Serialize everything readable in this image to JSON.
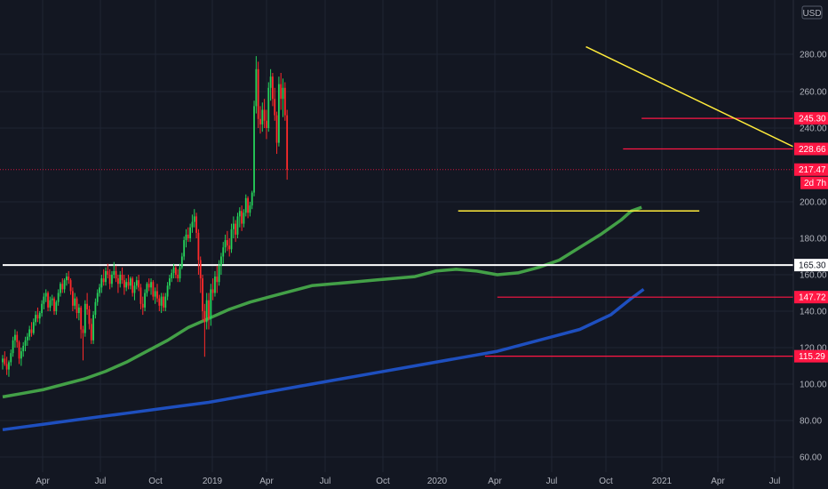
{
  "chart_data": {
    "type": "candlestick",
    "currency": "USD",
    "countdown": "2d 7h",
    "y_axis": {
      "ylim": [
        55,
        300
      ],
      "ticks": [
        60,
        80,
        100,
        120,
        140,
        160,
        180,
        200,
        240,
        260,
        280
      ]
    },
    "x_axis": {
      "ticks": [
        "Apr",
        "Jul",
        "Oct",
        "2019",
        "Apr",
        "Jul",
        "Oct",
        "2020",
        "Apr",
        "Jul",
        "Oct",
        "2021",
        "Apr",
        "Jul"
      ]
    },
    "price_labels": [
      {
        "value": 245.3,
        "text": "245.30",
        "color": "#ff1744"
      },
      {
        "value": 228.66,
        "text": "228.66",
        "color": "#ff1744"
      },
      {
        "value": 217.47,
        "text": "217.47",
        "color": "#ff1744"
      },
      {
        "value": 165.3,
        "text": "165.30",
        "color": "#ffffff"
      },
      {
        "value": 147.72,
        "text": "147.72",
        "color": "#ff1744"
      },
      {
        "value": 115.29,
        "text": "115.29",
        "color": "#ff1744"
      }
    ],
    "candles": [
      {
        "o": 112,
        "h": 116,
        "l": 108,
        "c": 114
      },
      {
        "o": 114,
        "h": 118,
        "l": 110,
        "c": 111
      },
      {
        "o": 111,
        "h": 115,
        "l": 105,
        "c": 108
      },
      {
        "o": 108,
        "h": 113,
        "l": 104,
        "c": 112
      },
      {
        "o": 112,
        "h": 119,
        "l": 110,
        "c": 117
      },
      {
        "o": 117,
        "h": 126,
        "l": 115,
        "c": 124
      },
      {
        "o": 124,
        "h": 130,
        "l": 120,
        "c": 127
      },
      {
        "o": 127,
        "h": 129,
        "l": 120,
        "c": 123
      },
      {
        "o": 123,
        "h": 124,
        "l": 111,
        "c": 114
      },
      {
        "o": 114,
        "h": 120,
        "l": 110,
        "c": 118
      },
      {
        "o": 118,
        "h": 123,
        "l": 115,
        "c": 121
      },
      {
        "o": 121,
        "h": 126,
        "l": 118,
        "c": 124
      },
      {
        "o": 124,
        "h": 128,
        "l": 121,
        "c": 126
      },
      {
        "o": 126,
        "h": 132,
        "l": 124,
        "c": 130
      },
      {
        "o": 130,
        "h": 134,
        "l": 126,
        "c": 128
      },
      {
        "o": 128,
        "h": 136,
        "l": 127,
        "c": 134
      },
      {
        "o": 134,
        "h": 140,
        "l": 132,
        "c": 138
      },
      {
        "o": 138,
        "h": 142,
        "l": 134,
        "c": 136
      },
      {
        "o": 136,
        "h": 140,
        "l": 133,
        "c": 139
      },
      {
        "o": 139,
        "h": 146,
        "l": 137,
        "c": 144
      },
      {
        "o": 144,
        "h": 150,
        "l": 141,
        "c": 148
      },
      {
        "o": 148,
        "h": 152,
        "l": 145,
        "c": 150
      },
      {
        "o": 150,
        "h": 151,
        "l": 140,
        "c": 142
      },
      {
        "o": 142,
        "h": 148,
        "l": 140,
        "c": 146
      },
      {
        "o": 146,
        "h": 149,
        "l": 143,
        "c": 147
      },
      {
        "o": 147,
        "h": 148,
        "l": 138,
        "c": 140
      },
      {
        "o": 140,
        "h": 146,
        "l": 138,
        "c": 145
      },
      {
        "o": 145,
        "h": 152,
        "l": 143,
        "c": 150
      },
      {
        "o": 150,
        "h": 156,
        "l": 148,
        "c": 155
      },
      {
        "o": 155,
        "h": 158,
        "l": 150,
        "c": 152
      },
      {
        "o": 152,
        "h": 158,
        "l": 150,
        "c": 157
      },
      {
        "o": 157,
        "h": 161,
        "l": 154,
        "c": 159
      },
      {
        "o": 159,
        "h": 162,
        "l": 155,
        "c": 157
      },
      {
        "o": 157,
        "h": 158,
        "l": 149,
        "c": 151
      },
      {
        "o": 151,
        "h": 153,
        "l": 140,
        "c": 143
      },
      {
        "o": 143,
        "h": 150,
        "l": 141,
        "c": 147
      },
      {
        "o": 147,
        "h": 148,
        "l": 136,
        "c": 139
      },
      {
        "o": 139,
        "h": 144,
        "l": 135,
        "c": 142
      },
      {
        "o": 142,
        "h": 143,
        "l": 125,
        "c": 130
      },
      {
        "o": 130,
        "h": 132,
        "l": 113,
        "c": 128
      },
      {
        "o": 128,
        "h": 146,
        "l": 126,
        "c": 144
      },
      {
        "o": 144,
        "h": 150,
        "l": 138,
        "c": 141
      },
      {
        "o": 141,
        "h": 143,
        "l": 130,
        "c": 133
      },
      {
        "o": 133,
        "h": 136,
        "l": 122,
        "c": 124
      },
      {
        "o": 124,
        "h": 140,
        "l": 122,
        "c": 138
      },
      {
        "o": 138,
        "h": 147,
        "l": 136,
        "c": 145
      },
      {
        "o": 145,
        "h": 152,
        "l": 143,
        "c": 150
      },
      {
        "o": 150,
        "h": 155,
        "l": 148,
        "c": 153
      },
      {
        "o": 153,
        "h": 160,
        "l": 150,
        "c": 158
      },
      {
        "o": 158,
        "h": 163,
        "l": 154,
        "c": 156
      },
      {
        "o": 156,
        "h": 164,
        "l": 154,
        "c": 162
      },
      {
        "o": 162,
        "h": 166,
        "l": 158,
        "c": 160
      },
      {
        "o": 160,
        "h": 163,
        "l": 152,
        "c": 155
      },
      {
        "o": 155,
        "h": 162,
        "l": 153,
        "c": 160
      },
      {
        "o": 160,
        "h": 167,
        "l": 158,
        "c": 162
      },
      {
        "o": 162,
        "h": 165,
        "l": 156,
        "c": 158
      },
      {
        "o": 158,
        "h": 160,
        "l": 150,
        "c": 155
      },
      {
        "o": 155,
        "h": 162,
        "l": 153,
        "c": 160
      },
      {
        "o": 160,
        "h": 164,
        "l": 155,
        "c": 157
      },
      {
        "o": 157,
        "h": 160,
        "l": 149,
        "c": 153
      },
      {
        "o": 153,
        "h": 158,
        "l": 151,
        "c": 156
      },
      {
        "o": 156,
        "h": 160,
        "l": 152,
        "c": 154
      },
      {
        "o": 154,
        "h": 159,
        "l": 152,
        "c": 158
      },
      {
        "o": 158,
        "h": 159,
        "l": 148,
        "c": 150
      },
      {
        "o": 150,
        "h": 156,
        "l": 146,
        "c": 154
      },
      {
        "o": 154,
        "h": 159,
        "l": 152,
        "c": 157
      },
      {
        "o": 157,
        "h": 160,
        "l": 151,
        "c": 153
      },
      {
        "o": 153,
        "h": 155,
        "l": 141,
        "c": 144
      },
      {
        "o": 144,
        "h": 148,
        "l": 138,
        "c": 142
      },
      {
        "o": 142,
        "h": 152,
        "l": 140,
        "c": 150
      },
      {
        "o": 150,
        "h": 156,
        "l": 148,
        "c": 155
      },
      {
        "o": 155,
        "h": 158,
        "l": 151,
        "c": 153
      },
      {
        "o": 153,
        "h": 158,
        "l": 149,
        "c": 156
      },
      {
        "o": 156,
        "h": 157,
        "l": 146,
        "c": 148
      },
      {
        "o": 148,
        "h": 153,
        "l": 144,
        "c": 151
      },
      {
        "o": 151,
        "h": 155,
        "l": 145,
        "c": 147
      },
      {
        "o": 147,
        "h": 149,
        "l": 140,
        "c": 143
      },
      {
        "o": 143,
        "h": 150,
        "l": 139,
        "c": 148
      },
      {
        "o": 148,
        "h": 150,
        "l": 140,
        "c": 142
      },
      {
        "o": 142,
        "h": 150,
        "l": 140,
        "c": 148
      },
      {
        "o": 148,
        "h": 156,
        "l": 146,
        "c": 154
      },
      {
        "o": 154,
        "h": 160,
        "l": 152,
        "c": 158
      },
      {
        "o": 158,
        "h": 163,
        "l": 156,
        "c": 161
      },
      {
        "o": 161,
        "h": 166,
        "l": 158,
        "c": 164
      },
      {
        "o": 164,
        "h": 165,
        "l": 158,
        "c": 160
      },
      {
        "o": 160,
        "h": 163,
        "l": 156,
        "c": 158
      },
      {
        "o": 158,
        "h": 166,
        "l": 156,
        "c": 164
      },
      {
        "o": 164,
        "h": 172,
        "l": 163,
        "c": 170
      },
      {
        "o": 170,
        "h": 181,
        "l": 168,
        "c": 179
      },
      {
        "o": 179,
        "h": 185,
        "l": 175,
        "c": 182
      },
      {
        "o": 182,
        "h": 186,
        "l": 178,
        "c": 180
      },
      {
        "o": 180,
        "h": 188,
        "l": 178,
        "c": 186
      },
      {
        "o": 186,
        "h": 193,
        "l": 183,
        "c": 189
      },
      {
        "o": 189,
        "h": 196,
        "l": 186,
        "c": 192
      },
      {
        "o": 192,
        "h": 194,
        "l": 180,
        "c": 183
      },
      {
        "o": 183,
        "h": 185,
        "l": 160,
        "c": 168
      },
      {
        "o": 168,
        "h": 170,
        "l": 150,
        "c": 158
      },
      {
        "o": 158,
        "h": 160,
        "l": 135,
        "c": 140
      },
      {
        "o": 140,
        "h": 144,
        "l": 115,
        "c": 134
      },
      {
        "o": 134,
        "h": 150,
        "l": 130,
        "c": 146
      },
      {
        "o": 146,
        "h": 150,
        "l": 130,
        "c": 136
      },
      {
        "o": 136,
        "h": 155,
        "l": 132,
        "c": 152
      },
      {
        "o": 152,
        "h": 158,
        "l": 146,
        "c": 150
      },
      {
        "o": 150,
        "h": 162,
        "l": 148,
        "c": 159
      },
      {
        "o": 159,
        "h": 165,
        "l": 150,
        "c": 156
      },
      {
        "o": 156,
        "h": 168,
        "l": 154,
        "c": 165
      },
      {
        "o": 165,
        "h": 172,
        "l": 160,
        "c": 170
      },
      {
        "o": 170,
        "h": 178,
        "l": 166,
        "c": 175
      },
      {
        "o": 175,
        "h": 182,
        "l": 172,
        "c": 179
      },
      {
        "o": 179,
        "h": 184,
        "l": 173,
        "c": 176
      },
      {
        "o": 176,
        "h": 180,
        "l": 170,
        "c": 174
      },
      {
        "o": 174,
        "h": 188,
        "l": 172,
        "c": 185
      },
      {
        "o": 185,
        "h": 192,
        "l": 180,
        "c": 188
      },
      {
        "o": 188,
        "h": 190,
        "l": 178,
        "c": 182
      },
      {
        "o": 182,
        "h": 194,
        "l": 180,
        "c": 192
      },
      {
        "o": 192,
        "h": 197,
        "l": 186,
        "c": 195
      },
      {
        "o": 195,
        "h": 198,
        "l": 184,
        "c": 188
      },
      {
        "o": 188,
        "h": 196,
        "l": 186,
        "c": 194
      },
      {
        "o": 194,
        "h": 204,
        "l": 192,
        "c": 202
      },
      {
        "o": 202,
        "h": 203,
        "l": 191,
        "c": 194
      },
      {
        "o": 194,
        "h": 200,
        "l": 192,
        "c": 198
      },
      {
        "o": 198,
        "h": 206,
        "l": 196,
        "c": 205
      },
      {
        "o": 205,
        "h": 255,
        "l": 203,
        "c": 252
      },
      {
        "o": 252,
        "h": 279,
        "l": 248,
        "c": 272
      },
      {
        "o": 272,
        "h": 276,
        "l": 240,
        "c": 245
      },
      {
        "o": 245,
        "h": 252,
        "l": 237,
        "c": 242
      },
      {
        "o": 242,
        "h": 254,
        "l": 238,
        "c": 250
      },
      {
        "o": 250,
        "h": 256,
        "l": 240,
        "c": 244
      },
      {
        "o": 244,
        "h": 250,
        "l": 234,
        "c": 240
      },
      {
        "o": 240,
        "h": 265,
        "l": 238,
        "c": 262
      },
      {
        "o": 262,
        "h": 272,
        "l": 255,
        "c": 268
      },
      {
        "o": 268,
        "h": 270,
        "l": 252,
        "c": 256
      },
      {
        "o": 256,
        "h": 262,
        "l": 244,
        "c": 247
      },
      {
        "o": 247,
        "h": 249,
        "l": 226,
        "c": 232
      },
      {
        "o": 232,
        "h": 268,
        "l": 230,
        "c": 264
      },
      {
        "o": 264,
        "h": 270,
        "l": 250,
        "c": 256
      },
      {
        "o": 256,
        "h": 267,
        "l": 246,
        "c": 262
      },
      {
        "o": 262,
        "h": 265,
        "l": 244,
        "c": 247
      },
      {
        "o": 247,
        "h": 250,
        "l": 212,
        "c": 217.47
      }
    ],
    "series": [
      {
        "name": "",
        "color": "#43a047",
        "points": [
          [
            0,
            93
          ],
          [
            10,
            95
          ],
          [
            20,
            97
          ],
          [
            30,
            100
          ],
          [
            40,
            103
          ],
          [
            50,
            107
          ],
          [
            60,
            112
          ],
          [
            70,
            118
          ],
          [
            80,
            124
          ],
          [
            90,
            131
          ],
          [
            100,
            136
          ],
          [
            110,
            141
          ],
          [
            115,
            143
          ],
          [
            120,
            145
          ],
          [
            130,
            148
          ],
          [
            140,
            151
          ],
          [
            150,
            154
          ],
          [
            160,
            155
          ],
          [
            170,
            156
          ],
          [
            180,
            157
          ],
          [
            190,
            158
          ],
          [
            200,
            159
          ],
          [
            210,
            162
          ],
          [
            220,
            163
          ],
          [
            230,
            162
          ],
          [
            240,
            160
          ],
          [
            250,
            161
          ],
          [
            260,
            164
          ],
          [
            270,
            168
          ],
          [
            280,
            175
          ],
          [
            290,
            182
          ],
          [
            300,
            190
          ],
          [
            305,
            195
          ],
          [
            310,
            197
          ]
        ]
      },
      {
        "name": "",
        "color": "#1e4fbf",
        "points": [
          [
            0,
            75
          ],
          [
            20,
            78
          ],
          [
            40,
            81
          ],
          [
            60,
            84
          ],
          [
            80,
            87
          ],
          [
            100,
            90
          ],
          [
            120,
            94
          ],
          [
            140,
            98
          ],
          [
            160,
            102
          ],
          [
            180,
            106
          ],
          [
            200,
            110
          ],
          [
            220,
            114
          ],
          [
            240,
            118
          ],
          [
            260,
            124
          ],
          [
            280,
            130
          ],
          [
            295,
            138
          ],
          [
            305,
            147
          ],
          [
            311,
            152
          ]
        ]
      }
    ],
    "trendlines": [
      {
        "kind": "diagonal-resistance",
        "color": "#ffeb3b",
        "from": [
          283,
          284
        ],
        "to": [
          415,
          213
        ]
      },
      {
        "kind": "horizontal",
        "color": "#ffeb3b",
        "from": [
          221,
          195
        ],
        "to": [
          338,
          195
        ]
      }
    ],
    "levels": [
      {
        "value": 245.3,
        "color": "#ff1744",
        "from": 310
      },
      {
        "value": 228.66,
        "color": "#ff1744",
        "from": 301
      },
      {
        "value": 147.72,
        "color": "#ff1744",
        "from": 240
      },
      {
        "value": 115.29,
        "color": "#ff1744",
        "from": 234
      },
      {
        "value": 165.3,
        "color": "#ffffff",
        "from": 0
      }
    ]
  }
}
